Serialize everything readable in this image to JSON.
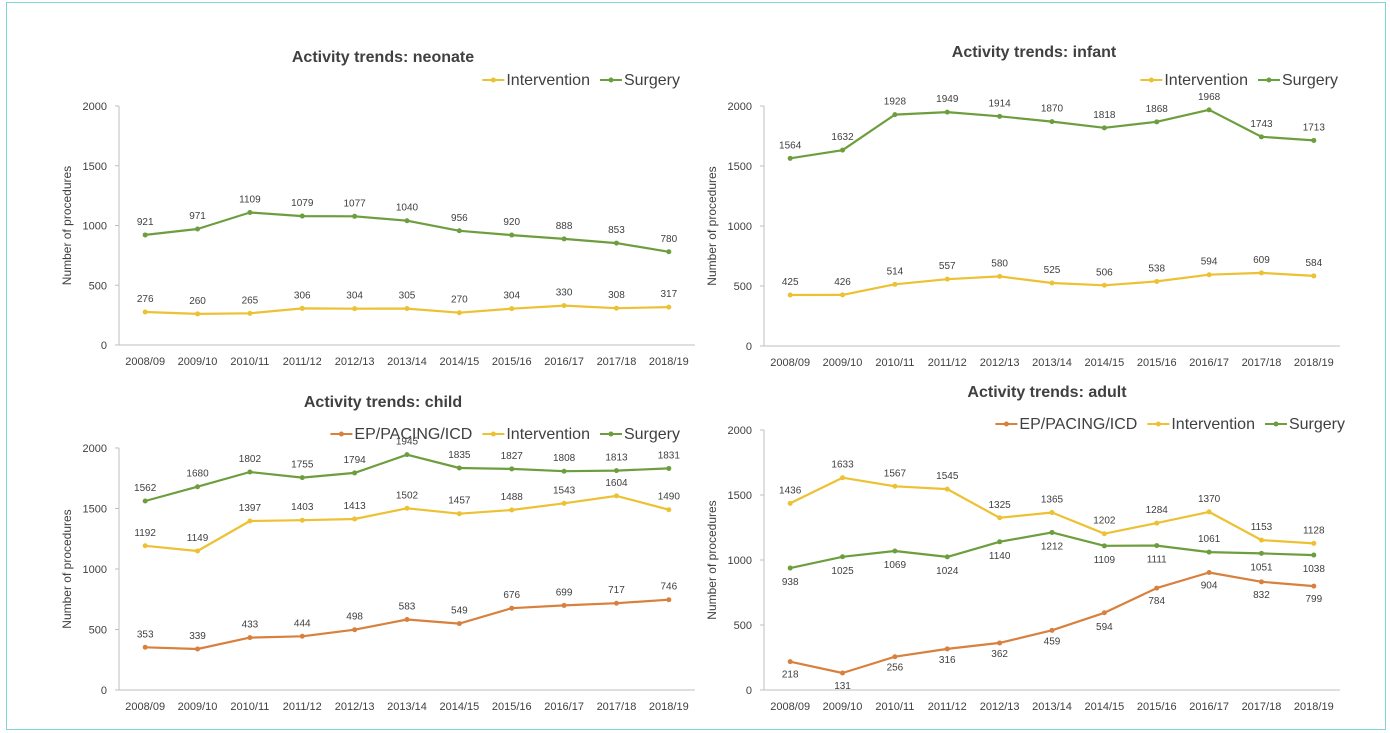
{
  "colors": {
    "Intervention": "#ecc133",
    "Surgery": "#6d9e3e",
    "EP/PACING/ICD": "#d8803d",
    "axis": "#bfbfbf",
    "text": "#404040",
    "border": "#7fd6d8"
  },
  "chart_data": [
    {
      "type": "line",
      "title": "Activity trends: neonate",
      "ylabel": "Number of procedures",
      "xlabel": "",
      "ylim": [
        0,
        2000
      ],
      "yticks": [
        "0",
        "500",
        "1000",
        "1500",
        "2000"
      ],
      "legend": "top-right",
      "grid": false,
      "categories": [
        "2008/09",
        "2009/10",
        "2010/11",
        "2011/12",
        "2012/13",
        "2013/14",
        "2014/15",
        "2015/16",
        "2016/17",
        "2017/18",
        "2018/19"
      ],
      "series": [
        {
          "name": "Intervention",
          "values": [
            276,
            260,
            265,
            306,
            304,
            305,
            270,
            304,
            330,
            308,
            317
          ]
        },
        {
          "name": "Surgery",
          "values": [
            921,
            971,
            1109,
            1079,
            1077,
            1040,
            956,
            920,
            888,
            853,
            780
          ]
        }
      ]
    },
    {
      "type": "line",
      "title": "Activity trends: infant",
      "ylabel": "Number of procedures",
      "xlabel": "",
      "ylim": [
        0,
        2000
      ],
      "yticks": [
        "0",
        "500",
        "1000",
        "1500",
        "2000"
      ],
      "legend": "top-right",
      "grid": false,
      "categories": [
        "2008/09",
        "2009/10",
        "2010/11",
        "2011/12",
        "2012/13",
        "2013/14",
        "2014/15",
        "2015/16",
        "2016/17",
        "2017/18",
        "2018/19"
      ],
      "series": [
        {
          "name": "Intervention",
          "values": [
            425,
            426,
            514,
            557,
            580,
            525,
            506,
            538,
            594,
            609,
            584
          ]
        },
        {
          "name": "Surgery",
          "values": [
            1564,
            1632,
            1928,
            1949,
            1914,
            1870,
            1818,
            1868,
            1968,
            1743,
            1713
          ]
        }
      ]
    },
    {
      "type": "line",
      "title": "Activity trends: child",
      "ylabel": "Number of procedures",
      "xlabel": "",
      "ylim": [
        0,
        2000
      ],
      "yticks": [
        "0",
        "500",
        "1000",
        "1500",
        "2000"
      ],
      "legend": "top-right",
      "grid": false,
      "categories": [
        "2008/09",
        "2009/10",
        "2010/11",
        "2011/12",
        "2012/13",
        "2013/14",
        "2014/15",
        "2015/16",
        "2016/17",
        "2017/18",
        "2018/19"
      ],
      "series": [
        {
          "name": "EP/PACING/ICD",
          "values": [
            353,
            339,
            433,
            444,
            498,
            583,
            549,
            676,
            699,
            717,
            746
          ]
        },
        {
          "name": "Intervention",
          "values": [
            1192,
            1149,
            1397,
            1403,
            1413,
            1502,
            1457,
            1488,
            1543,
            1604,
            1490
          ]
        },
        {
          "name": "Surgery",
          "values": [
            1562,
            1680,
            1802,
            1755,
            1794,
            1945,
            1835,
            1827,
            1808,
            1813,
            1831
          ]
        }
      ]
    },
    {
      "type": "line",
      "title": "Activity trends: adult",
      "ylabel": "Number of procedures",
      "xlabel": "",
      "ylim": [
        0,
        2000
      ],
      "yticks": [
        "0",
        "500",
        "1000",
        "1500",
        "2000"
      ],
      "legend": "top-right",
      "grid": false,
      "categories": [
        "2008/09",
        "2009/10",
        "2010/11",
        "2011/12",
        "2012/13",
        "2013/14",
        "2014/15",
        "2015/16",
        "2016/17",
        "2017/18",
        "2018/19"
      ],
      "series": [
        {
          "name": "EP/PACING/ICD",
          "values": [
            218,
            131,
            256,
            316,
            362,
            459,
            594,
            784,
            904,
            832,
            799
          ]
        },
        {
          "name": "Intervention",
          "values": [
            1436,
            1633,
            1567,
            1545,
            1325,
            1365,
            1202,
            1284,
            1370,
            1153,
            1128
          ]
        },
        {
          "name": "Surgery",
          "values": [
            938,
            1025,
            1069,
            1024,
            1140,
            1212,
            1109,
            1111,
            1061,
            1051,
            1038
          ]
        }
      ]
    }
  ]
}
